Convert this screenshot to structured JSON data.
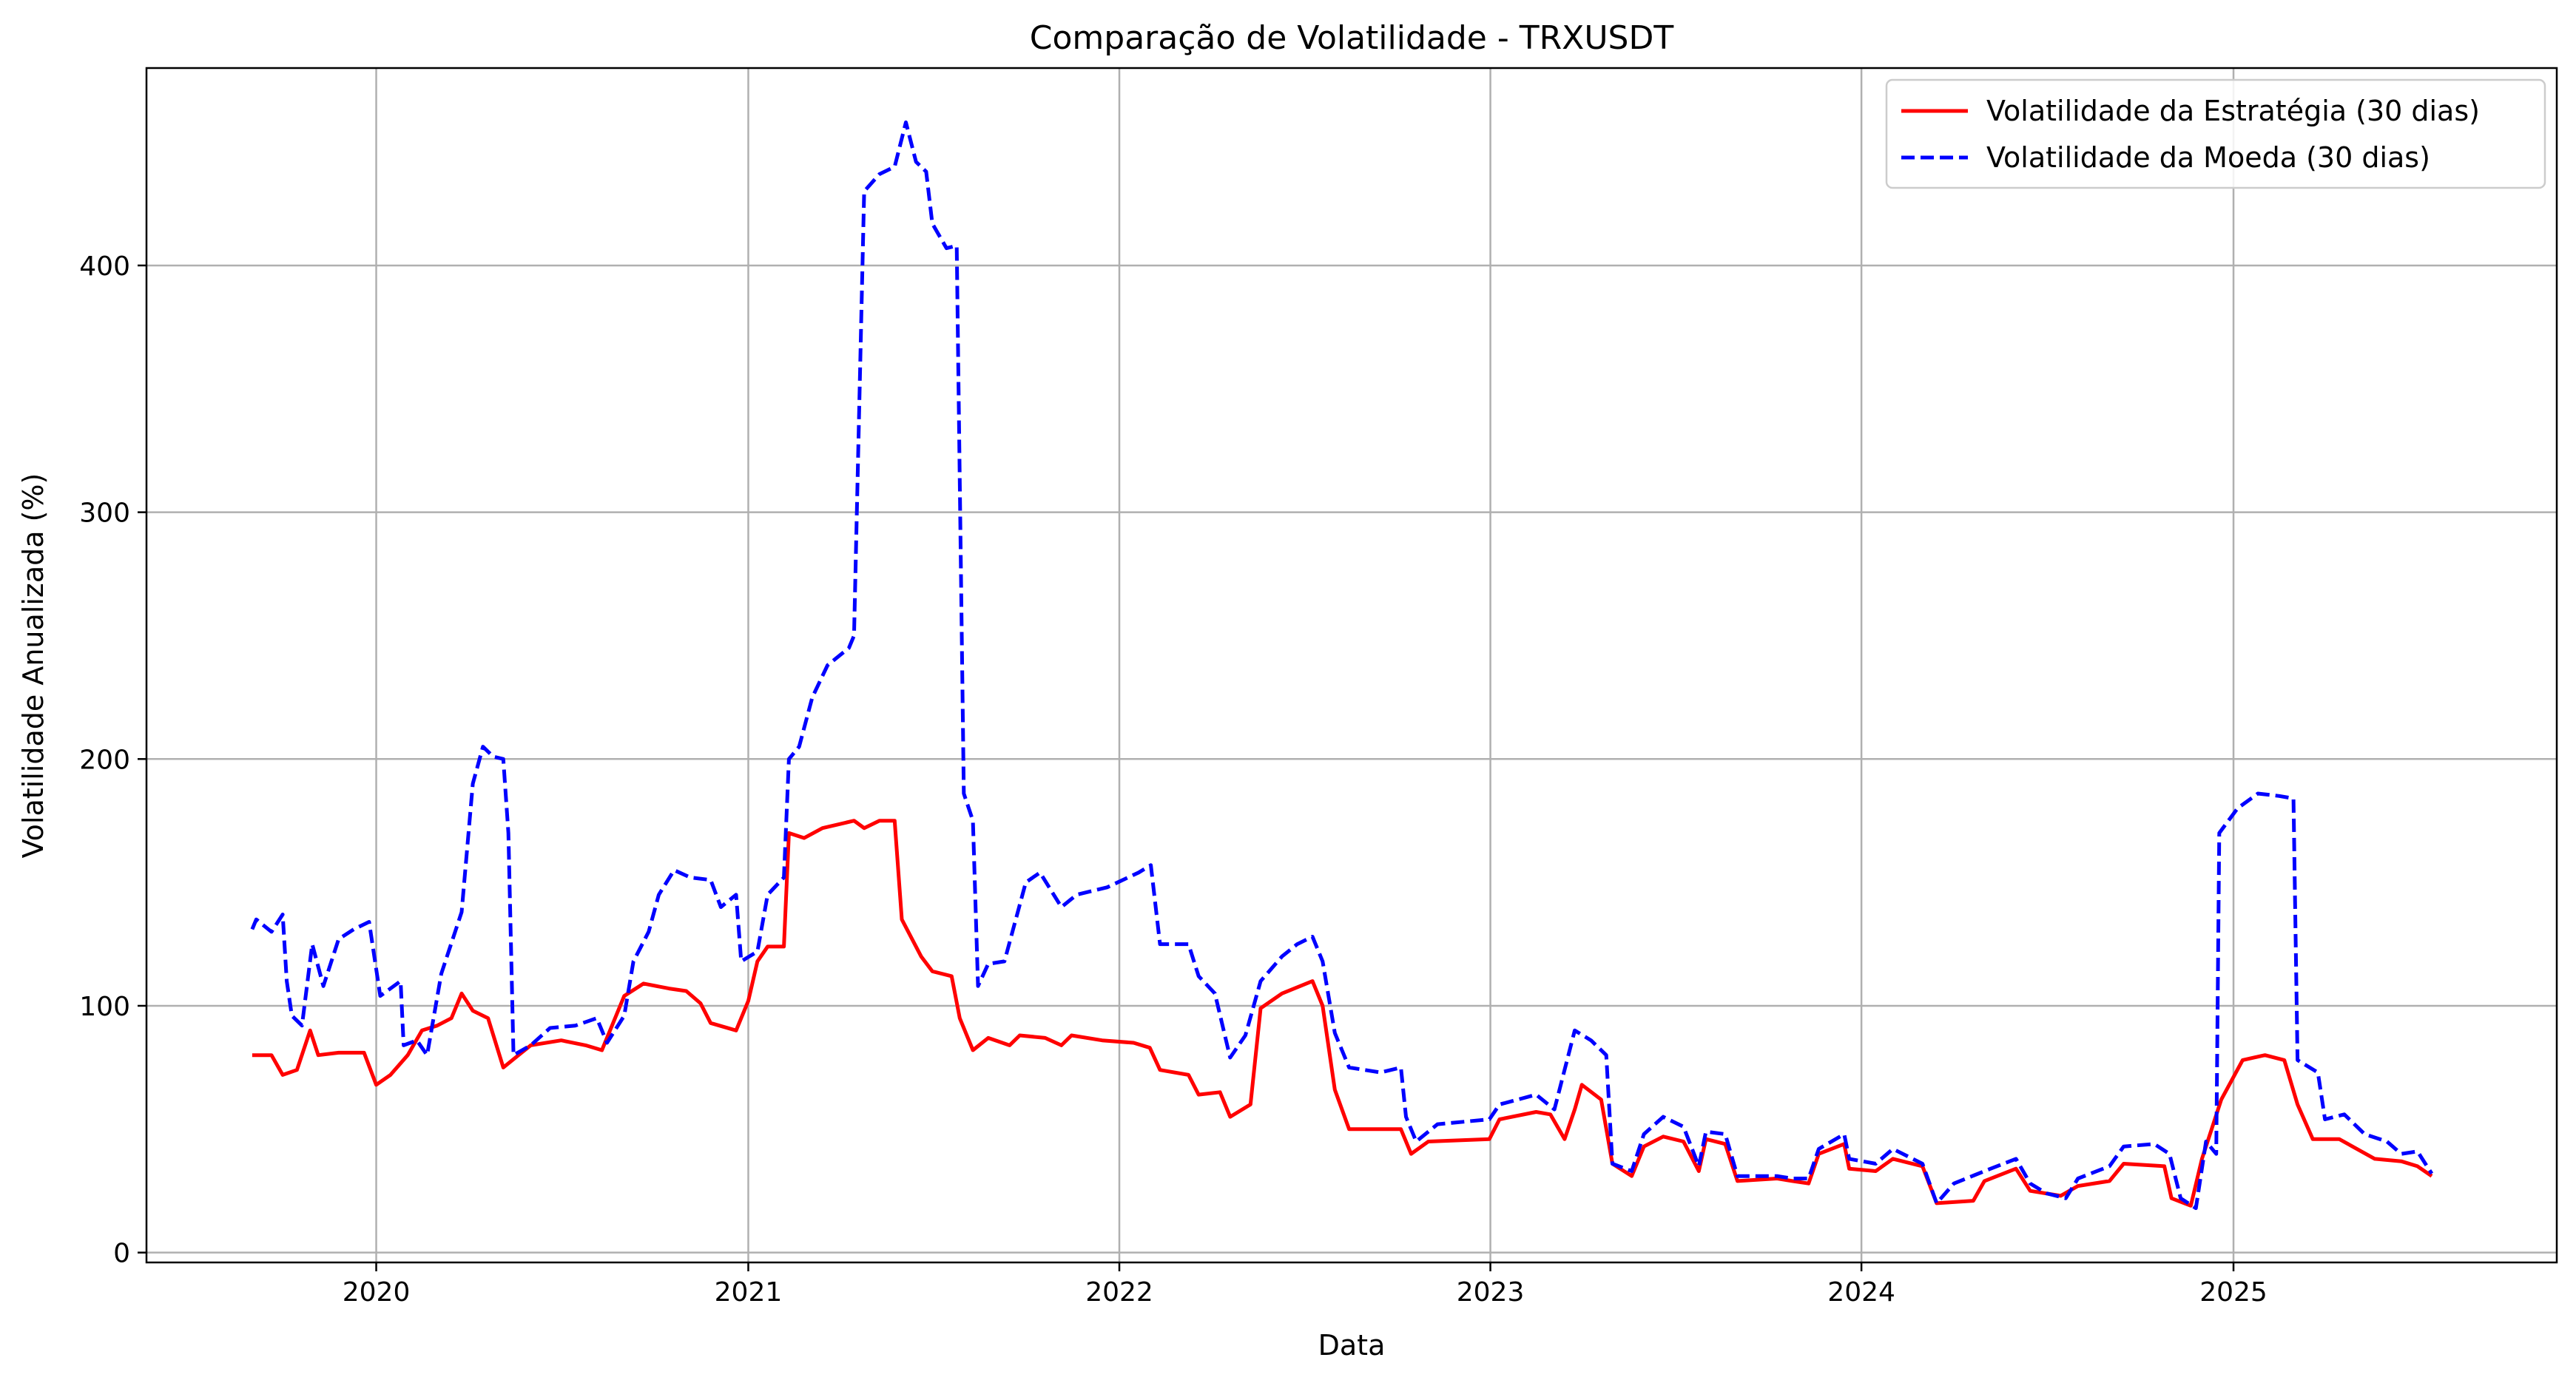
{
  "chart_data": {
    "type": "line",
    "title": "Comparação de Volatilidade - TRXUSDT",
    "xlabel": "Data",
    "ylabel": "Volatilidade Anualizada (%)",
    "x_axis_type": "date",
    "xlim": [
      "2019-05-20",
      "2025-11-15"
    ],
    "ylim": [
      -4,
      480
    ],
    "x_ticks": [
      {
        "label": "2020",
        "value": "2020-01-01"
      },
      {
        "label": "2021",
        "value": "2021-01-01"
      },
      {
        "label": "2022",
        "value": "2022-01-01"
      },
      {
        "label": "2023",
        "value": "2023-01-01"
      },
      {
        "label": "2024",
        "value": "2024-01-01"
      },
      {
        "label": "2025",
        "value": "2025-01-01"
      }
    ],
    "y_ticks": [
      0,
      100,
      200,
      300,
      400
    ],
    "grid": true,
    "legend_position": "top-right",
    "series": [
      {
        "name": "Volatilidade da Estratégia (30 dias)",
        "color": "#ff0000",
        "style": "solid",
        "points": [
          [
            "2019-09-01",
            80
          ],
          [
            "2019-09-20",
            80
          ],
          [
            "2019-10-01",
            72
          ],
          [
            "2019-10-15",
            74
          ],
          [
            "2019-10-28",
            90
          ],
          [
            "2019-11-05",
            80
          ],
          [
            "2019-11-25",
            81
          ],
          [
            "2019-12-20",
            81
          ],
          [
            "2020-01-01",
            68
          ],
          [
            "2020-01-15",
            72
          ],
          [
            "2020-02-01",
            80
          ],
          [
            "2020-02-15",
            90
          ],
          [
            "2020-03-01",
            92
          ],
          [
            "2020-03-15",
            95
          ],
          [
            "2020-03-25",
            105
          ],
          [
            "2020-04-05",
            98
          ],
          [
            "2020-04-20",
            95
          ],
          [
            "2020-05-05",
            75
          ],
          [
            "2020-05-20",
            80
          ],
          [
            "2020-06-01",
            84
          ],
          [
            "2020-07-01",
            86
          ],
          [
            "2020-07-25",
            84
          ],
          [
            "2020-08-10",
            82
          ],
          [
            "2020-08-20",
            92
          ],
          [
            "2020-09-01",
            104
          ],
          [
            "2020-09-20",
            109
          ],
          [
            "2020-10-15",
            107
          ],
          [
            "2020-11-01",
            106
          ],
          [
            "2020-11-15",
            101
          ],
          [
            "2020-11-25",
            93
          ],
          [
            "2020-12-20",
            90
          ],
          [
            "2021-01-01",
            102
          ],
          [
            "2021-01-10",
            118
          ],
          [
            "2021-01-20",
            124
          ],
          [
            "2021-02-05",
            124
          ],
          [
            "2021-02-10",
            170
          ],
          [
            "2021-02-25",
            168
          ],
          [
            "2021-03-15",
            172
          ],
          [
            "2021-04-15",
            175
          ],
          [
            "2021-04-25",
            172
          ],
          [
            "2021-05-10",
            175
          ],
          [
            "2021-05-25",
            175
          ],
          [
            "2021-06-01",
            135
          ],
          [
            "2021-06-20",
            120
          ],
          [
            "2021-07-01",
            114
          ],
          [
            "2021-07-20",
            112
          ],
          [
            "2021-07-28",
            95
          ],
          [
            "2021-08-10",
            82
          ],
          [
            "2021-08-25",
            87
          ],
          [
            "2021-09-15",
            84
          ],
          [
            "2021-09-25",
            88
          ],
          [
            "2021-10-20",
            87
          ],
          [
            "2021-11-05",
            84
          ],
          [
            "2021-11-15",
            88
          ],
          [
            "2021-12-15",
            86
          ],
          [
            "2022-01-15",
            85
          ],
          [
            "2022-01-31",
            83
          ],
          [
            "2022-02-10",
            74
          ],
          [
            "2022-03-10",
            72
          ],
          [
            "2022-03-20",
            64
          ],
          [
            "2022-04-10",
            65
          ],
          [
            "2022-04-20",
            55
          ],
          [
            "2022-05-10",
            60
          ],
          [
            "2022-05-20",
            99
          ],
          [
            "2022-06-10",
            105
          ],
          [
            "2022-07-10",
            110
          ],
          [
            "2022-07-20",
            100
          ],
          [
            "2022-08-01",
            66
          ],
          [
            "2022-08-15",
            50
          ],
          [
            "2022-10-05",
            50
          ],
          [
            "2022-10-15",
            40
          ],
          [
            "2022-11-01",
            45
          ],
          [
            "2022-12-31",
            46
          ],
          [
            "2023-01-10",
            54
          ],
          [
            "2023-02-15",
            57
          ],
          [
            "2023-03-01",
            56
          ],
          [
            "2023-03-15",
            46
          ],
          [
            "2023-03-25",
            58
          ],
          [
            "2023-04-01",
            68
          ],
          [
            "2023-04-20",
            62
          ],
          [
            "2023-05-01",
            36
          ],
          [
            "2023-05-20",
            31
          ],
          [
            "2023-06-01",
            43
          ],
          [
            "2023-06-20",
            47
          ],
          [
            "2023-07-10",
            45
          ],
          [
            "2023-07-25",
            33
          ],
          [
            "2023-08-01",
            46
          ],
          [
            "2023-08-20",
            44
          ],
          [
            "2023-09-01",
            29
          ],
          [
            "2023-10-10",
            30
          ],
          [
            "2023-10-25",
            29
          ],
          [
            "2023-11-10",
            28
          ],
          [
            "2023-11-20",
            40
          ],
          [
            "2023-12-15",
            44
          ],
          [
            "2023-12-20",
            34
          ],
          [
            "2024-01-15",
            33
          ],
          [
            "2024-02-01",
            38
          ],
          [
            "2024-03-01",
            35
          ],
          [
            "2024-03-15",
            20
          ],
          [
            "2024-04-20",
            21
          ],
          [
            "2024-05-01",
            29
          ],
          [
            "2024-06-01",
            34
          ],
          [
            "2024-06-15",
            25
          ],
          [
            "2024-07-15",
            23
          ],
          [
            "2024-08-01",
            27
          ],
          [
            "2024-09-01",
            29
          ],
          [
            "2024-09-15",
            36
          ],
          [
            "2024-10-25",
            35
          ],
          [
            "2024-11-01",
            22
          ],
          [
            "2024-11-20",
            19
          ],
          [
            "2024-12-01",
            38
          ],
          [
            "2024-12-20",
            62
          ],
          [
            "2025-01-10",
            78
          ],
          [
            "2025-02-01",
            80
          ],
          [
            "2025-02-20",
            78
          ],
          [
            "2025-03-05",
            60
          ],
          [
            "2025-03-20",
            46
          ],
          [
            "2025-04-15",
            46
          ],
          [
            "2025-05-20",
            38
          ],
          [
            "2025-06-15",
            37
          ],
          [
            "2025-07-01",
            35
          ],
          [
            "2025-07-15",
            31
          ]
        ]
      },
      {
        "name": "Volatilidade da Moeda (30 dias)",
        "color": "#0000ff",
        "style": "dashed",
        "points": [
          [
            "2019-09-01",
            131
          ],
          [
            "2019-09-05",
            135
          ],
          [
            "2019-09-20",
            130
          ],
          [
            "2019-10-01",
            137
          ],
          [
            "2019-10-05",
            110
          ],
          [
            "2019-10-10",
            96
          ],
          [
            "2019-10-20",
            92
          ],
          [
            "2019-10-30",
            125
          ],
          [
            "2019-11-10",
            108
          ],
          [
            "2019-11-25",
            127
          ],
          [
            "2019-12-10",
            131
          ],
          [
            "2019-12-25",
            134
          ],
          [
            "2020-01-05",
            104
          ],
          [
            "2020-01-25",
            110
          ],
          [
            "2020-01-28",
            84
          ],
          [
            "2020-02-10",
            86
          ],
          [
            "2020-02-20",
            80
          ],
          [
            "2020-03-05",
            113
          ],
          [
            "2020-03-25",
            138
          ],
          [
            "2020-04-05",
            190
          ],
          [
            "2020-04-15",
            205
          ],
          [
            "2020-04-25",
            201
          ],
          [
            "2020-05-05",
            200
          ],
          [
            "2020-05-10",
            170
          ],
          [
            "2020-05-15",
            80
          ],
          [
            "2020-06-01",
            84
          ],
          [
            "2020-06-20",
            91
          ],
          [
            "2020-07-15",
            92
          ],
          [
            "2020-08-05",
            95
          ],
          [
            "2020-08-15",
            85
          ],
          [
            "2020-09-01",
            96
          ],
          [
            "2020-09-10",
            118
          ],
          [
            "2020-09-25",
            130
          ],
          [
            "2020-10-05",
            145
          ],
          [
            "2020-10-20",
            155
          ],
          [
            "2020-11-05",
            152
          ],
          [
            "2020-11-25",
            151
          ],
          [
            "2020-12-05",
            140
          ],
          [
            "2020-12-20",
            145
          ],
          [
            "2020-12-25",
            118
          ],
          [
            "2021-01-10",
            122
          ],
          [
            "2021-01-20",
            145
          ],
          [
            "2021-02-05",
            152
          ],
          [
            "2021-02-10",
            200
          ],
          [
            "2021-02-20",
            205
          ],
          [
            "2021-03-05",
            225
          ],
          [
            "2021-03-20",
            238
          ],
          [
            "2021-04-10",
            245
          ],
          [
            "2021-04-15",
            250
          ],
          [
            "2021-04-25",
            430
          ],
          [
            "2021-05-10",
            437
          ],
          [
            "2021-05-25",
            440
          ],
          [
            "2021-06-05",
            458
          ],
          [
            "2021-06-15",
            442
          ],
          [
            "2021-06-25",
            438
          ],
          [
            "2021-07-01",
            417
          ],
          [
            "2021-07-15",
            407
          ],
          [
            "2021-07-25",
            408
          ],
          [
            "2021-08-01",
            186
          ],
          [
            "2021-08-10",
            175
          ],
          [
            "2021-08-15",
            108
          ],
          [
            "2021-08-25",
            117
          ],
          [
            "2021-09-10",
            118
          ],
          [
            "2021-10-01",
            150
          ],
          [
            "2021-10-15",
            154
          ],
          [
            "2021-11-05",
            140
          ],
          [
            "2021-11-20",
            145
          ],
          [
            "2021-12-20",
            148
          ],
          [
            "2022-01-20",
            154
          ],
          [
            "2022-02-01",
            157
          ],
          [
            "2022-02-10",
            125
          ],
          [
            "2022-03-10",
            125
          ],
          [
            "2022-03-20",
            112
          ],
          [
            "2022-04-05",
            105
          ],
          [
            "2022-04-20",
            79
          ],
          [
            "2022-05-05",
            88
          ],
          [
            "2022-05-20",
            110
          ],
          [
            "2022-06-10",
            120
          ],
          [
            "2022-06-25",
            125
          ],
          [
            "2022-07-10",
            128
          ],
          [
            "2022-07-20",
            118
          ],
          [
            "2022-08-01",
            89
          ],
          [
            "2022-08-15",
            75
          ],
          [
            "2022-09-15",
            73
          ],
          [
            "2022-10-05",
            75
          ],
          [
            "2022-10-10",
            55
          ],
          [
            "2022-10-20",
            45
          ],
          [
            "2022-11-10",
            52
          ],
          [
            "2022-12-31",
            54
          ],
          [
            "2023-01-10",
            60
          ],
          [
            "2023-02-15",
            64
          ],
          [
            "2023-03-05",
            58
          ],
          [
            "2023-03-25",
            90
          ],
          [
            "2023-04-10",
            86
          ],
          [
            "2023-04-25",
            80
          ],
          [
            "2023-05-01",
            36
          ],
          [
            "2023-05-20",
            33
          ],
          [
            "2023-06-01",
            48
          ],
          [
            "2023-06-20",
            55
          ],
          [
            "2023-07-10",
            51
          ],
          [
            "2023-07-25",
            35
          ],
          [
            "2023-08-01",
            49
          ],
          [
            "2023-08-20",
            48
          ],
          [
            "2023-09-01",
            31
          ],
          [
            "2023-10-10",
            31
          ],
          [
            "2023-10-25",
            30
          ],
          [
            "2023-11-10",
            30
          ],
          [
            "2023-11-20",
            42
          ],
          [
            "2023-12-15",
            48
          ],
          [
            "2023-12-20",
            38
          ],
          [
            "2024-01-15",
            36
          ],
          [
            "2024-02-01",
            42
          ],
          [
            "2024-03-01",
            36
          ],
          [
            "2024-03-15",
            20
          ],
          [
            "2024-04-01",
            28
          ],
          [
            "2024-05-01",
            33
          ],
          [
            "2024-06-01",
            38
          ],
          [
            "2024-06-15",
            28
          ],
          [
            "2024-07-01",
            24
          ],
          [
            "2024-07-20",
            22
          ],
          [
            "2024-08-01",
            30
          ],
          [
            "2024-09-01",
            35
          ],
          [
            "2024-09-15",
            43
          ],
          [
            "2024-10-15",
            44
          ],
          [
            "2024-10-30",
            40
          ],
          [
            "2024-11-10",
            22
          ],
          [
            "2024-11-25",
            18
          ],
          [
            "2024-12-05",
            45
          ],
          [
            "2024-12-15",
            40
          ],
          [
            "2024-12-18",
            170
          ],
          [
            "2025-01-05",
            180
          ],
          [
            "2025-01-25",
            186
          ],
          [
            "2025-02-15",
            185
          ],
          [
            "2025-03-01",
            184
          ],
          [
            "2025-03-05",
            78
          ],
          [
            "2025-03-25",
            73
          ],
          [
            "2025-04-01",
            54
          ],
          [
            "2025-04-20",
            56
          ],
          [
            "2025-05-10",
            48
          ],
          [
            "2025-06-01",
            45
          ],
          [
            "2025-06-15",
            40
          ],
          [
            "2025-07-01",
            41
          ],
          [
            "2025-07-15",
            32
          ]
        ]
      }
    ]
  }
}
